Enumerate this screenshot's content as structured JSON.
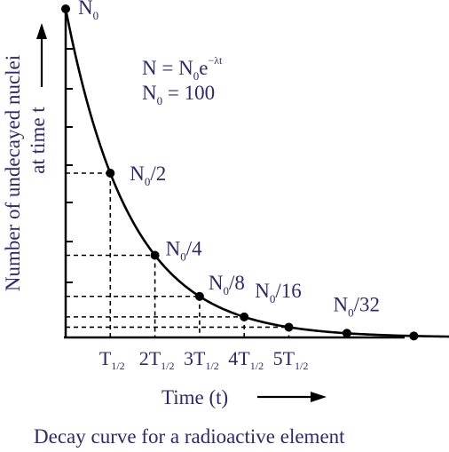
{
  "chart_data": {
    "type": "line",
    "xlabel": "Time (t)",
    "ylabel_line1": "Number of undecayed nuclei",
    "ylabel_line2": "at time t",
    "caption": "Decay curve for a radioactive element",
    "formula": {
      "main": "N = N",
      "main_sub": "0",
      "main_exp": "e",
      "exp": "−λt",
      "line2": "N",
      "line2_sub": "0",
      "line2_rest": " = 100"
    },
    "x_ticks": [
      {
        "n": 1,
        "prefix": "",
        "base": "T",
        "sub": "1/2"
      },
      {
        "n": 2,
        "prefix": "2",
        "base": "T",
        "sub": "1/2"
      },
      {
        "n": 3,
        "prefix": "3",
        "base": "T",
        "sub": "1/2"
      },
      {
        "n": 4,
        "prefix": "4",
        "base": "T",
        "sub": "1/2"
      },
      {
        "n": 5,
        "prefix": "5",
        "base": "T",
        "sub": "1/2"
      }
    ],
    "points": [
      {
        "t": 0,
        "N": 100,
        "label_base": "N",
        "label_sub": "0",
        "label_rest": ""
      },
      {
        "t": 1,
        "N": 50,
        "label_base": "N",
        "label_sub": "0",
        "label_rest": "/2"
      },
      {
        "t": 2,
        "N": 25,
        "label_base": "N",
        "label_sub": "0",
        "label_rest": "/4"
      },
      {
        "t": 3,
        "N": 12.5,
        "label_base": "N",
        "label_sub": "0",
        "label_rest": "/8"
      },
      {
        "t": 4,
        "N": 6.25,
        "label_base": "N",
        "label_sub": "0",
        "label_rest": "/16"
      },
      {
        "t": 5,
        "N": 3.125,
        "label_base": "N",
        "label_sub": "0",
        "label_rest": "/32"
      }
    ],
    "extra_points_t": [
      6.3,
      7.8
    ],
    "curve_t_max": 8.6,
    "colors": {
      "text": "#2b2a6e",
      "axis": "#000000"
    }
  }
}
